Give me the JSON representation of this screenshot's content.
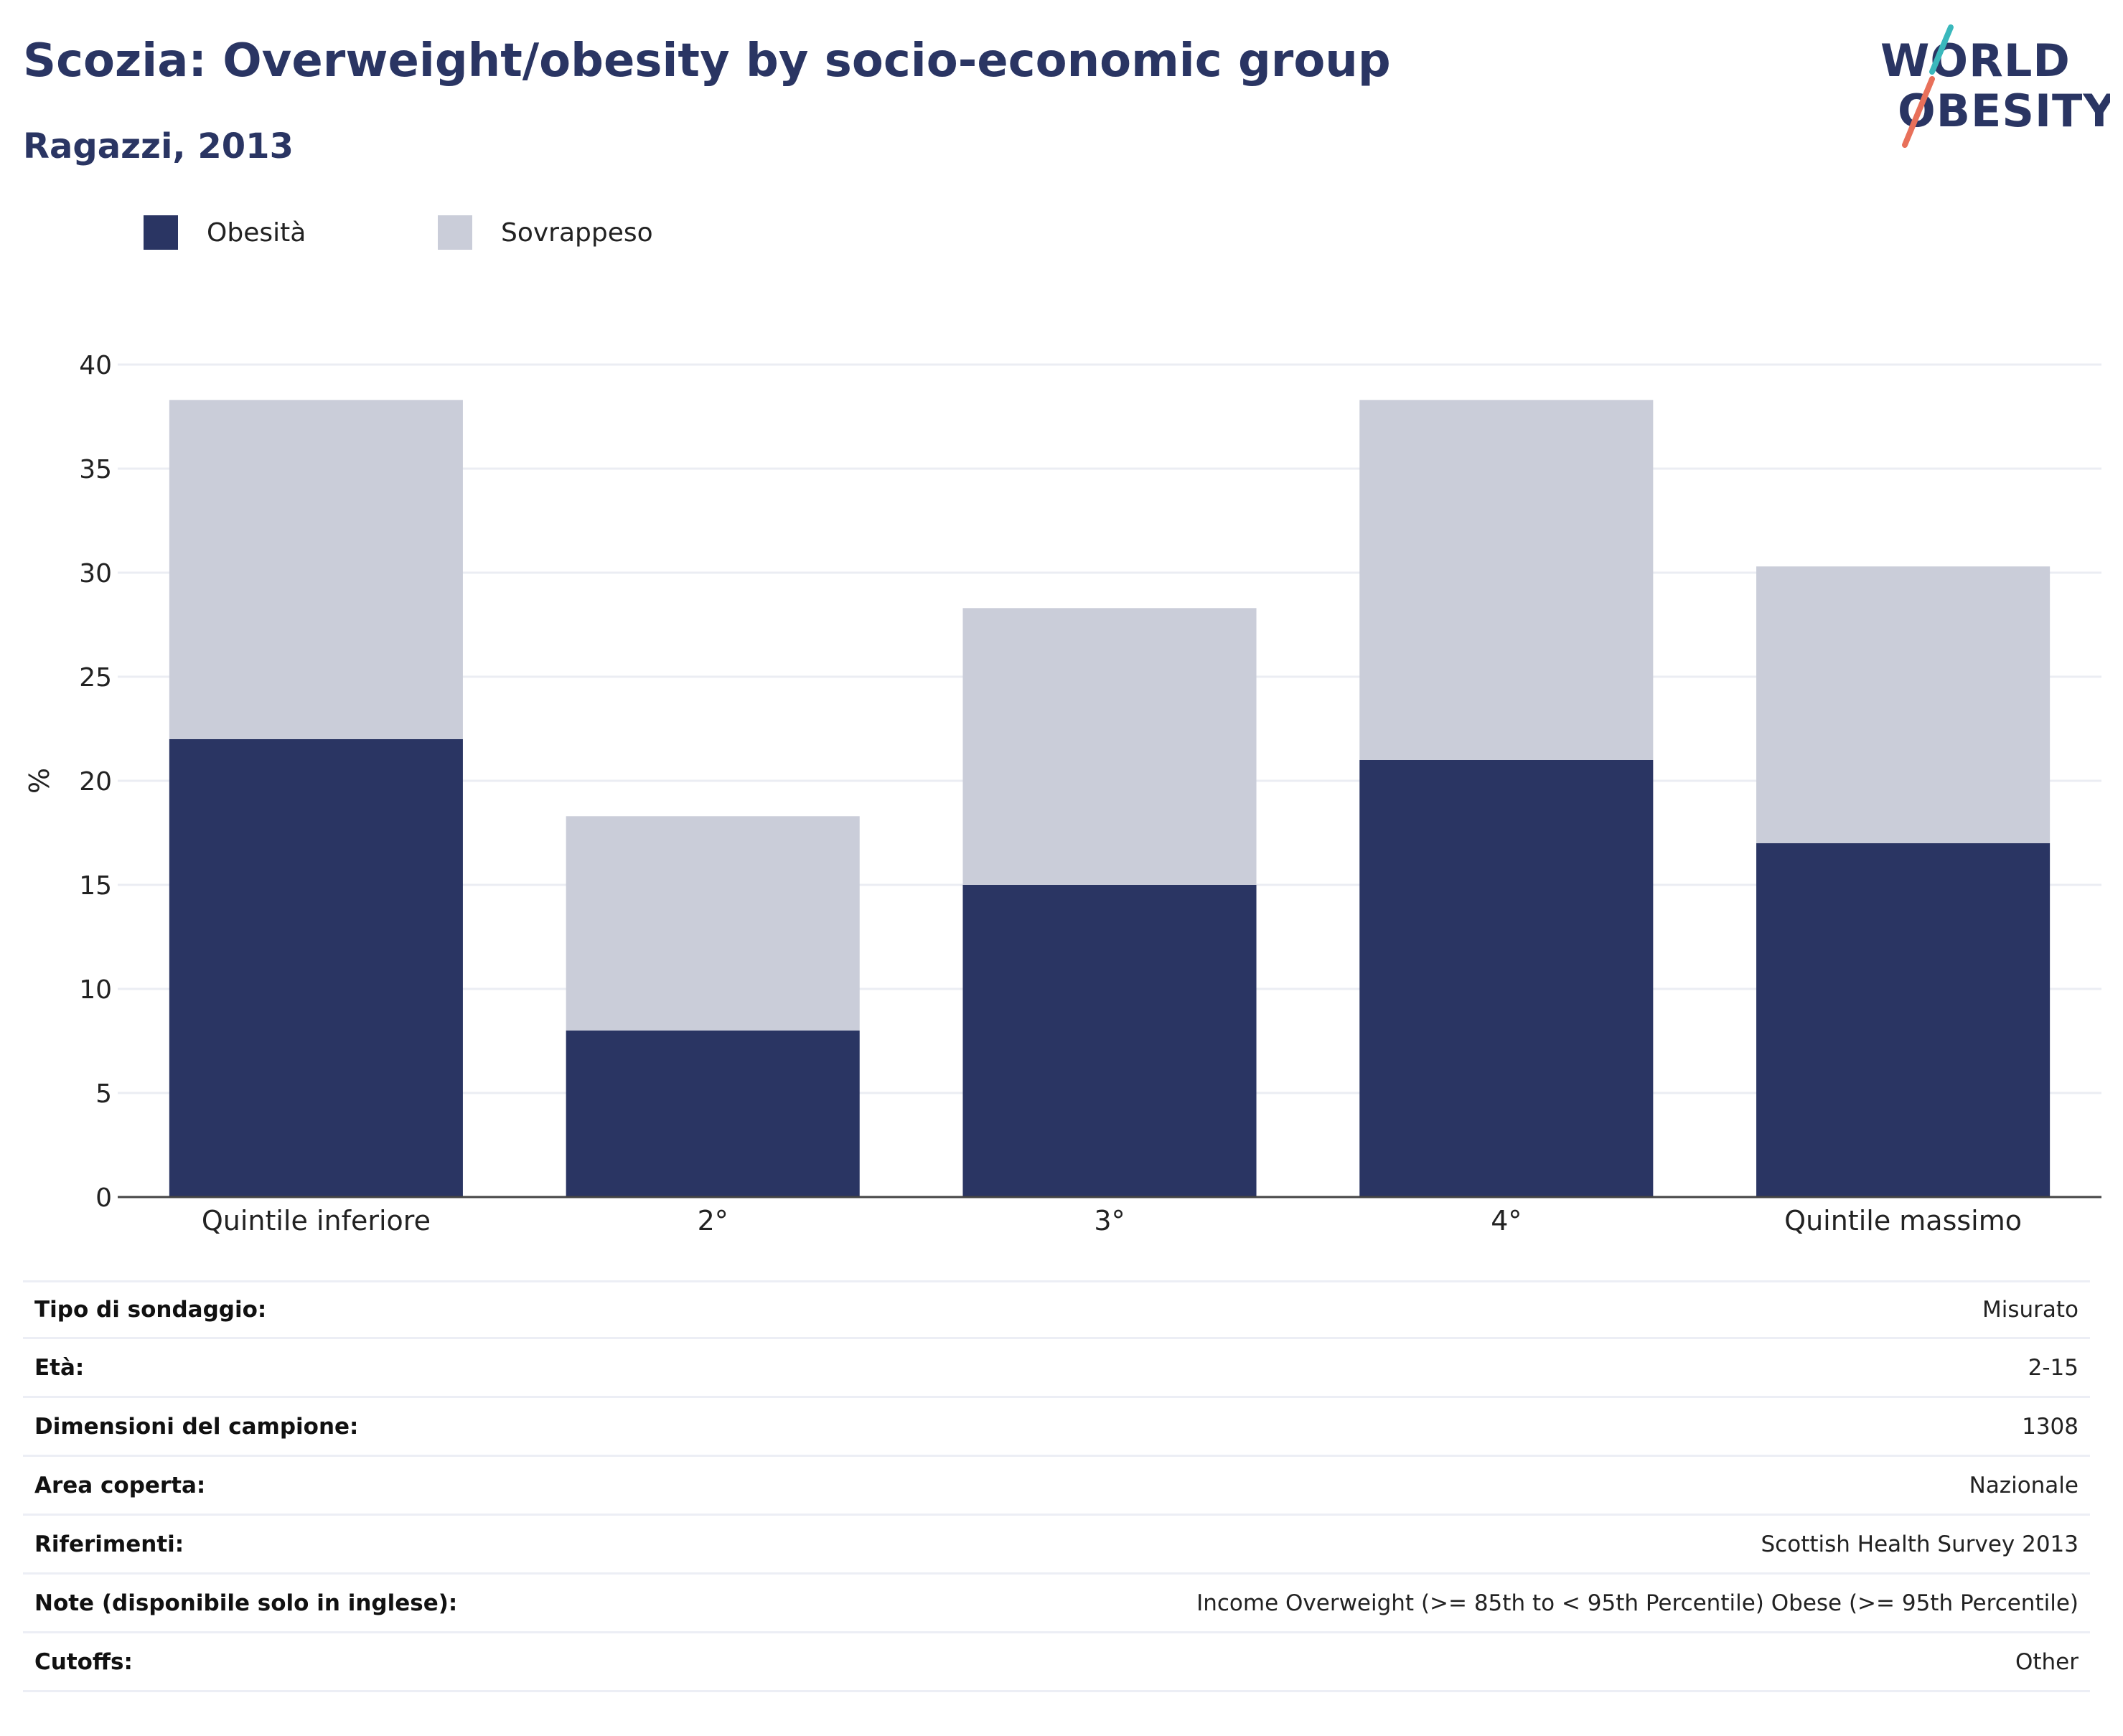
{
  "header": {
    "title": "Scozia: Overweight/obesity by socio-economic group",
    "subtitle": "Ragazzi, 2013"
  },
  "logo": {
    "line1": "WORLD",
    "line2": "OBESITY",
    "colors": {
      "text": "#2a3563",
      "slash_top": "#3ab8bc",
      "slash_bottom": "#e8705a"
    }
  },
  "legend": [
    {
      "label": "Obesità",
      "color": "#2a3563"
    },
    {
      "label": "Sovrappeso",
      "color": "#cacdd9"
    }
  ],
  "chart_data": {
    "type": "bar",
    "stacked": true,
    "categories": [
      "Quintile inferiore",
      "2°",
      "3°",
      "4°",
      "Quintile massimo"
    ],
    "series": [
      {
        "name": "Obesità",
        "values": [
          22,
          8,
          15,
          21,
          17
        ],
        "color": "#2a3563"
      },
      {
        "name": "Sovrappeso",
        "values": [
          16.3,
          10.3,
          13.3,
          17.3,
          13.3
        ],
        "color": "#cacdd9"
      }
    ],
    "ylabel": "%",
    "ylim": [
      0,
      40
    ],
    "yticks": [
      0,
      5,
      10,
      15,
      20,
      25,
      30,
      35,
      40
    ],
    "grid": true,
    "legend_position": "top-left"
  },
  "info": [
    {
      "key": "Tipo di sondaggio:",
      "value": "Misurato"
    },
    {
      "key": "Età:",
      "value": "2-15"
    },
    {
      "key": "Dimensioni del campione:",
      "value": "1308"
    },
    {
      "key": "Area coperta:",
      "value": "Nazionale"
    },
    {
      "key": "Riferimenti:",
      "value": "Scottish Health Survey 2013"
    },
    {
      "key": "Note (disponibile solo in inglese):",
      "value": "Income Overweight (>= 85th to < 95th Percentile) Obese (>= 95th Percentile)"
    },
    {
      "key": "Cutoffs:",
      "value": "Other"
    }
  ]
}
